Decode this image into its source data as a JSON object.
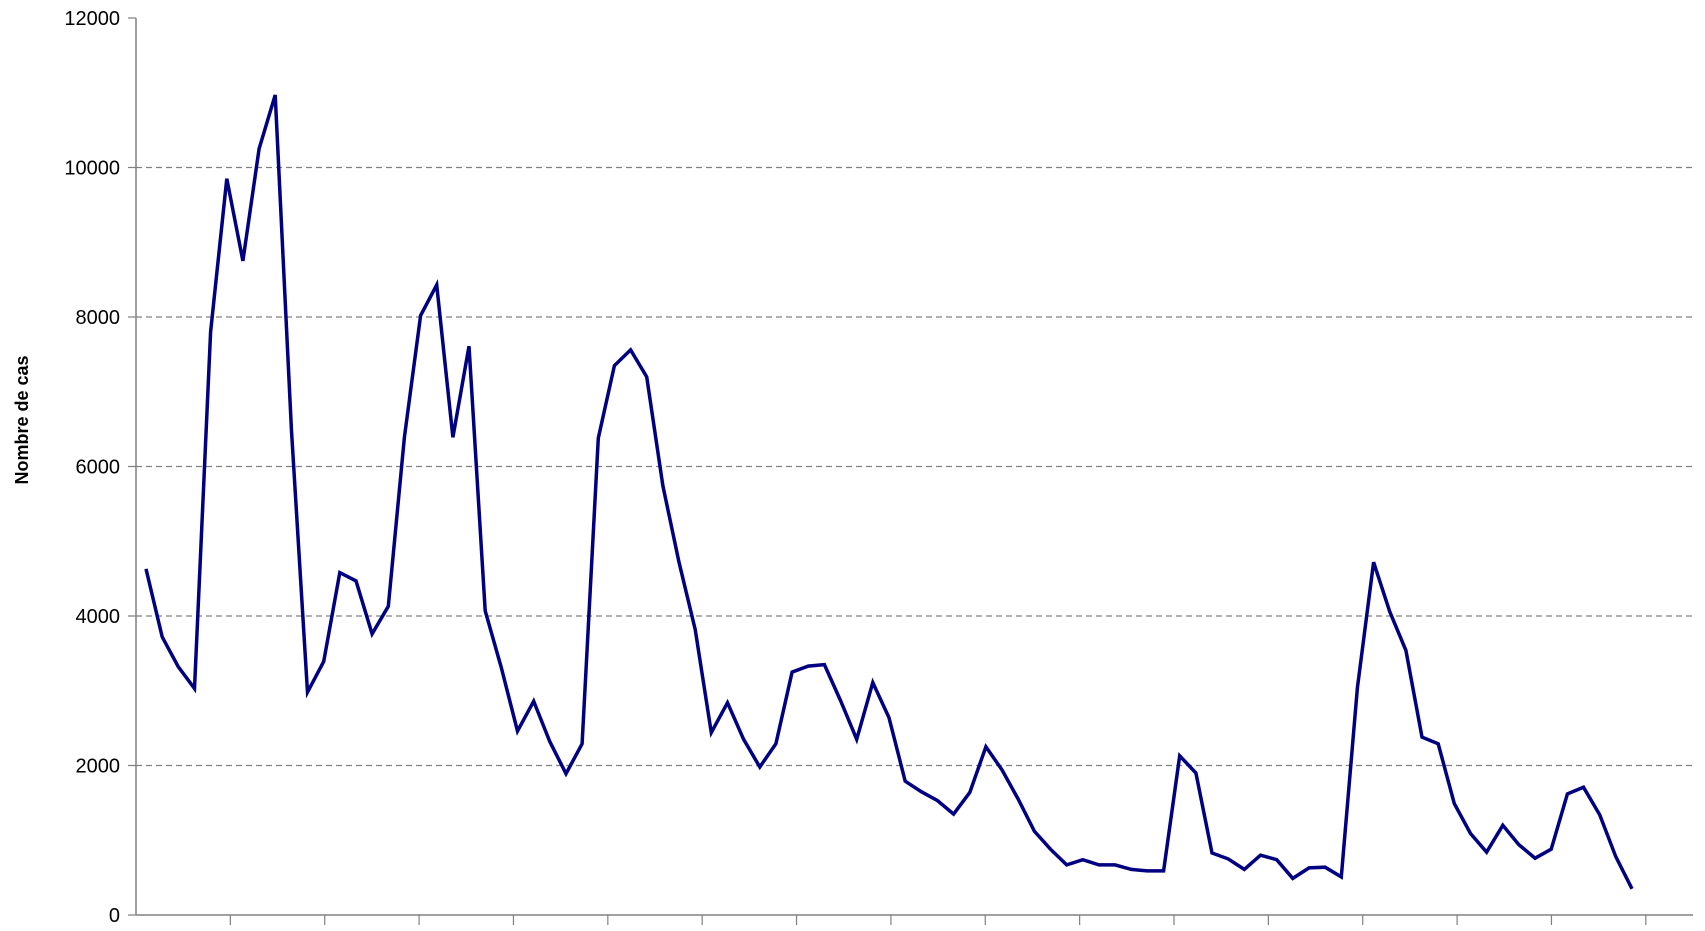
{
  "chart_data": {
    "type": "line",
    "title": "",
    "xlabel": "",
    "ylabel": "Nombre de cas",
    "ylim": [
      0,
      12000
    ],
    "yticks": [
      0,
      2000,
      4000,
      6000,
      8000,
      10000,
      12000
    ],
    "x_tick_marks": 16,
    "grid": "horizontal dashed",
    "colors": {
      "line": "#000080",
      "grid": "#808080",
      "axis": "#808080"
    },
    "series": [
      {
        "values": [
          4630,
          3720,
          3320,
          3030,
          7800,
          9850,
          8750,
          10250,
          10970,
          6500,
          2980,
          3390,
          4580,
          4470,
          3760,
          4130,
          6390,
          8020,
          8430,
          6390,
          7610,
          4070,
          3310,
          2460,
          2860,
          2320,
          1890,
          2290,
          6380,
          7350,
          7560,
          7200,
          5740,
          4720,
          3820,
          2440,
          2840,
          2350,
          1980,
          2290,
          3250,
          3330,
          3350,
          2870,
          2350,
          3110,
          2640,
          1790,
          1650,
          1530,
          1350,
          1640,
          2250,
          1940,
          1550,
          1120,
          880,
          670,
          740,
          670,
          670,
          610,
          590,
          590,
          2130,
          1900,
          830,
          750,
          610,
          800,
          740,
          490,
          630,
          640,
          510,
          3040,
          4720,
          4060,
          3540,
          2380,
          2290,
          1490,
          1090,
          840,
          1200,
          940,
          760,
          880,
          1620,
          1710,
          1340,
          780,
          350
        ]
      }
    ]
  }
}
